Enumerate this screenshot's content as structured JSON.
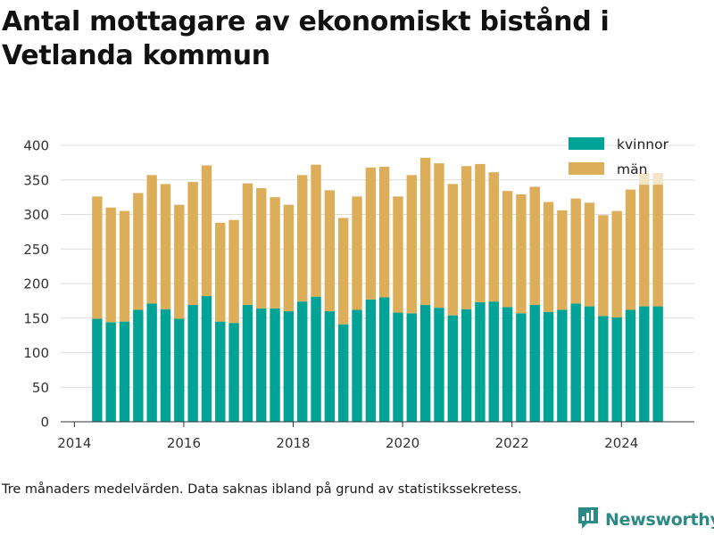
{
  "title": "Antal mottagare av ekonomiskt bistånd i Vetlanda kommun",
  "note": "Tre månaders medelvärden. Data saknas ibland på grund av statistikssekretess.",
  "brand": {
    "name": "Newsworthy",
    "color": "#2b8a85",
    "icon": "bar-chart-logo-icon"
  },
  "chart_data": {
    "type": "bar",
    "stacked": true,
    "x_ticks": [
      "2014",
      "2016",
      "2018",
      "2020",
      "2022",
      "2024"
    ],
    "y_ticks": [
      "0",
      "50",
      "100",
      "150",
      "200",
      "250",
      "300",
      "350",
      "400"
    ],
    "xlim": [
      "2013-10",
      "2025-05"
    ],
    "ylim": [
      0,
      400
    ],
    "grid": "horizontal",
    "legend_position": "top-right",
    "x": [
      "2014-06",
      "2014-09",
      "2014-12",
      "2015-03",
      "2015-06",
      "2015-09",
      "2015-12",
      "2016-03",
      "2016-06",
      "2016-09",
      "2016-12",
      "2017-03",
      "2017-06",
      "2017-09",
      "2017-12",
      "2018-03",
      "2018-06",
      "2018-09",
      "2018-12",
      "2019-03",
      "2019-06",
      "2019-09",
      "2019-12",
      "2020-03",
      "2020-06",
      "2020-09",
      "2020-12",
      "2021-03",
      "2021-06",
      "2021-09",
      "2021-12",
      "2022-03",
      "2022-06",
      "2022-09",
      "2022-12",
      "2023-03",
      "2023-06",
      "2023-09",
      "2023-12",
      "2024-03",
      "2024-06",
      "2024-09"
    ],
    "series": [
      {
        "name": "kvinnor",
        "color": "#00a396",
        "values": [
          149,
          144,
          145,
          162,
          171,
          163,
          149,
          169,
          182,
          145,
          143,
          169,
          164,
          164,
          160,
          174,
          181,
          160,
          141,
          162,
          177,
          180,
          158,
          157,
          169,
          165,
          154,
          163,
          173,
          174,
          166,
          157,
          169,
          159,
          162,
          171,
          167,
          153,
          151,
          162,
          167,
          167
        ]
      },
      {
        "name": "män",
        "color": "#dcae5a",
        "values": [
          177,
          166,
          160,
          169,
          186,
          181,
          165,
          178,
          189,
          143,
          149,
          176,
          174,
          161,
          154,
          183,
          191,
          175,
          154,
          164,
          191,
          189,
          168,
          200,
          213,
          209,
          190,
          207,
          200,
          187,
          168,
          172,
          171,
          159,
          144,
          152,
          150,
          146,
          154,
          174,
          176,
          176
        ]
      }
    ],
    "ghost": {
      "color": "#f3e6c8",
      "x": [
        "2024-06",
        "2024-09"
      ],
      "values": [
        360,
        360
      ]
    }
  }
}
